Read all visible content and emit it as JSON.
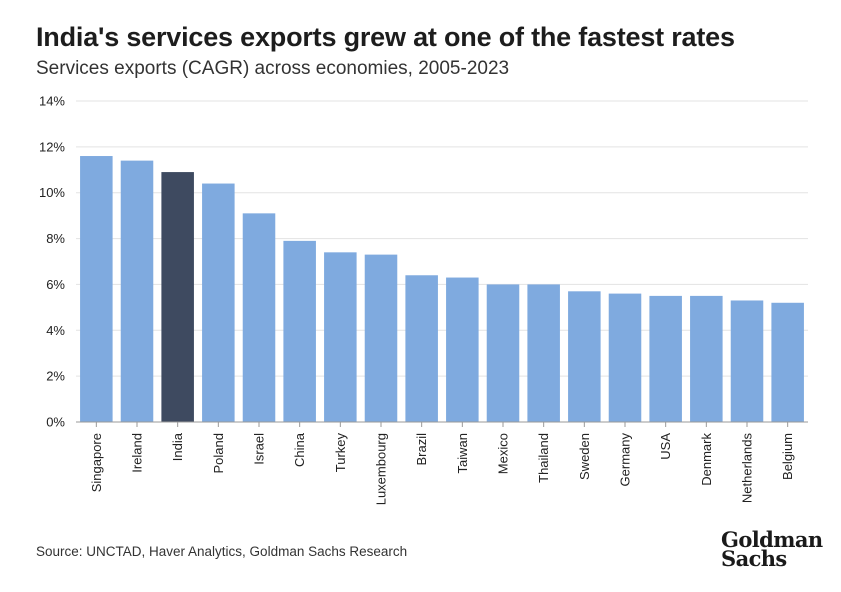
{
  "header": {
    "title": "India's services exports grew at one of the fastest rates",
    "subtitle": "Services exports (CAGR) across economies, 2005-2023"
  },
  "footer": {
    "source": "Source: UNCTAD, Haver Analytics, Goldman Sachs Research",
    "logo_line1": "Goldman",
    "logo_line2": "Sachs"
  },
  "colors": {
    "bar": "#7faadf",
    "highlight": "#3e4a60",
    "grid": "#e3e3e3",
    "axis": "#9a9a9a"
  },
  "chart_data": {
    "type": "bar",
    "categories": [
      "Singapore",
      "Ireland",
      "India",
      "Poland",
      "Israel",
      "China",
      "Turkey",
      "Luxembourg",
      "Brazil",
      "Taiwan",
      "Mexico",
      "Thailand",
      "Sweden",
      "Germany",
      "USA",
      "Denmark",
      "Netherlands",
      "Belgium"
    ],
    "values": [
      11.6,
      11.4,
      10.9,
      10.4,
      9.1,
      7.9,
      7.4,
      7.3,
      6.4,
      6.3,
      6.0,
      6.0,
      5.7,
      5.6,
      5.5,
      5.5,
      5.3,
      5.2
    ],
    "highlight": "India",
    "ylim": [
      0,
      14
    ],
    "yticks": [
      0,
      2,
      4,
      6,
      8,
      10,
      12,
      14
    ],
    "ytick_labels": [
      "0%",
      "2%",
      "4%",
      "6%",
      "8%",
      "10%",
      "12%",
      "14%"
    ],
    "grid": true,
    "legend": "none"
  }
}
